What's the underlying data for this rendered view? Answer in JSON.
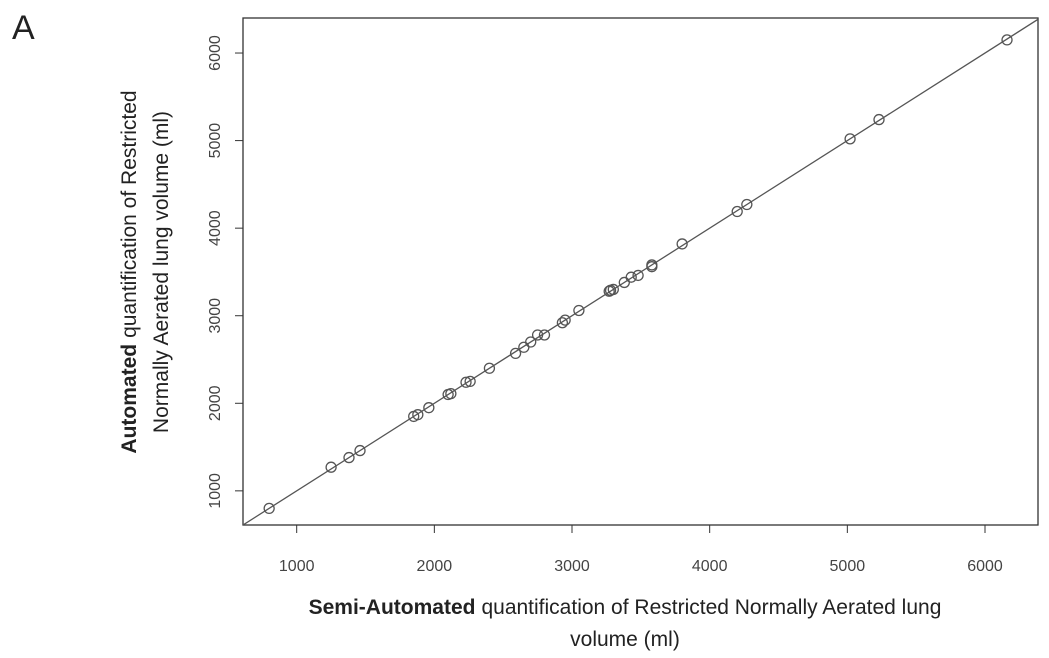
{
  "chart_data": {
    "type": "scatter",
    "panel_label": "A",
    "xlabel": [
      {
        "bold": "Semi-Automated",
        "text": "quantification of Restricted Normally Aerated lung"
      },
      {
        "text": "volume (ml)"
      }
    ],
    "ylabel": [
      {
        "bold": "Automated",
        "text": "quantification of Restricted"
      },
      {
        "text": "Normally Aerated lung volume (ml)"
      }
    ],
    "x": [
      800,
      1250,
      1380,
      1460,
      1850,
      1880,
      1960,
      2100,
      2120,
      2230,
      2260,
      2400,
      2590,
      2650,
      2700,
      2750,
      2800,
      2930,
      2950,
      3050,
      3270,
      3280,
      3300,
      3380,
      3430,
      3480,
      3580,
      3580,
      3800,
      4200,
      4270,
      5020,
      5230,
      6160
    ],
    "y": [
      800,
      1270,
      1380,
      1460,
      1850,
      1870,
      1950,
      2100,
      2110,
      2240,
      2250,
      2400,
      2570,
      2640,
      2700,
      2780,
      2780,
      2920,
      2950,
      3060,
      3280,
      3290,
      3300,
      3380,
      3440,
      3460,
      3560,
      3580,
      3820,
      4190,
      4270,
      5020,
      5240,
      6150
    ],
    "color": "#555555",
    "xlim": [
      610,
      6385
    ],
    "ylim": [
      610,
      6400
    ],
    "xticks": [
      1000,
      2000,
      3000,
      4000,
      5000,
      6000
    ],
    "yticks": [
      1000,
      2000,
      3000,
      4000,
      5000,
      6000
    ],
    "identity_line": true
  }
}
